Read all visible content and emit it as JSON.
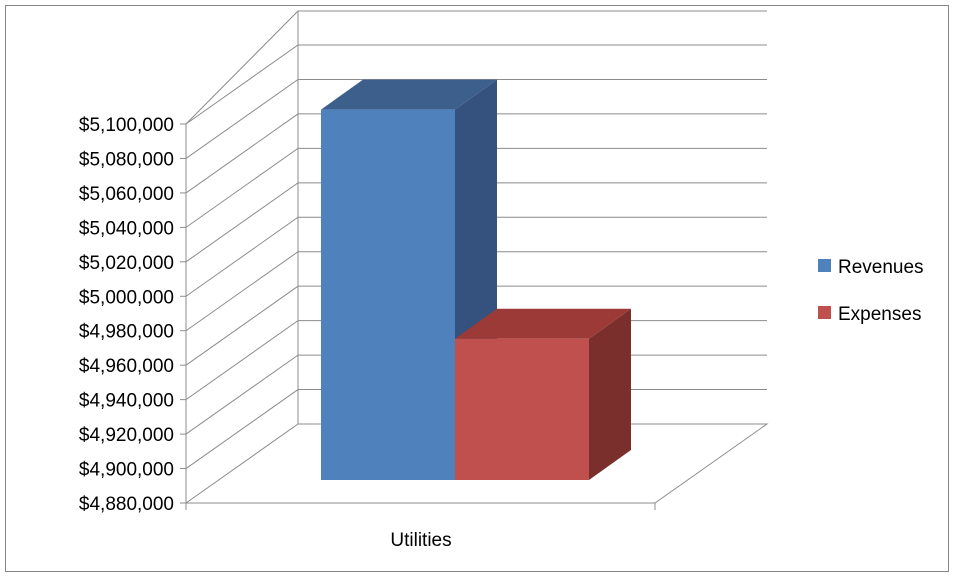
{
  "chart_data": {
    "type": "bar",
    "style": "3d-clustered-column",
    "categories": [
      "Utilities"
    ],
    "series": [
      {
        "name": "Revenues",
        "values": [
          5095000
        ],
        "color": "#4F81BD",
        "top_color": "#3C5F8C",
        "side_color": "#34527D"
      },
      {
        "name": "Expenses",
        "values": [
          4962000
        ],
        "color": "#C0504D",
        "top_color": "#9B3A37",
        "side_color": "#7A2F2D"
      }
    ],
    "ylim": [
      4880000,
      5100000
    ],
    "y_ticks": [
      4880000,
      4900000,
      4920000,
      4940000,
      4960000,
      4980000,
      5000000,
      5020000,
      5040000,
      5060000,
      5080000,
      5100000
    ],
    "y_tick_labels": [
      "$4,880,000",
      "$4,900,000",
      "$4,920,000",
      "$4,940,000",
      "$4,960,000",
      "$4,980,000",
      "$5,000,000",
      "$5,020,000",
      "$5,040,000",
      "$5,060,000",
      "$5,080,000",
      "$5,100,000"
    ],
    "grid": true,
    "legend_position": "right",
    "title": "",
    "xlabel": "",
    "ylabel": ""
  }
}
